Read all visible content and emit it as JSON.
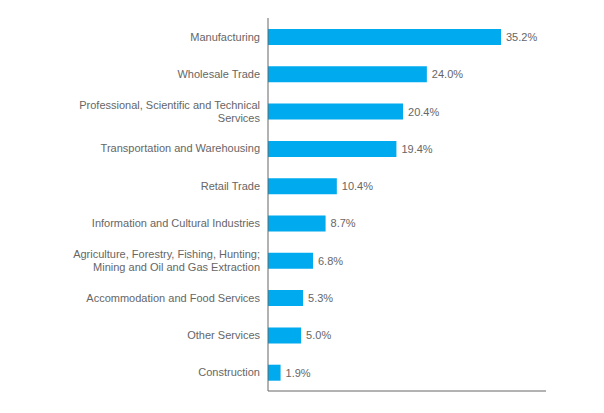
{
  "chart_data": {
    "type": "bar",
    "orientation": "horizontal",
    "categories": [
      "Construction",
      "Other Services",
      "Accommodation and Food Services",
      "Agriculture, Forestry, Fishing, Hunting;\nMining and Oil and Gas Extraction",
      "Information and Cultural Industries",
      "Retail Trade",
      "Transportation and Warehousing",
      "Professional, Scientific and Technical\nServices",
      "Wholesale Trade",
      "Manufacturing"
    ],
    "values": [
      1.9,
      5.0,
      5.3,
      6.8,
      8.7,
      10.4,
      19.4,
      20.4,
      24.0,
      35.2
    ],
    "value_labels": [
      "1.9%",
      "5.0%",
      "5.3%",
      "6.8%",
      "8.7%",
      "10.4%",
      "19.4%",
      "20.4%",
      "24.0%",
      "35.2%"
    ],
    "data_labels": true,
    "color": "#00AAEE",
    "xlim": [
      0,
      42
    ],
    "tick_labels": "y"
  }
}
